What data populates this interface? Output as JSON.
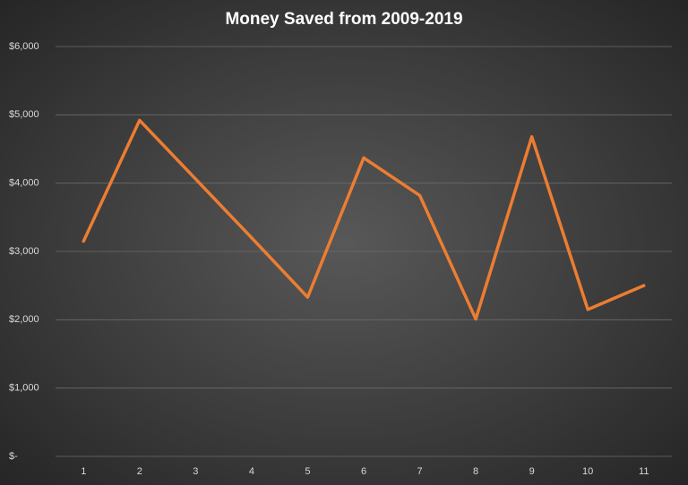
{
  "chart_data": {
    "type": "line",
    "title": "Money Saved from 2009-2019",
    "categories": [
      "1",
      "2",
      "3",
      "4",
      "5",
      "6",
      "7",
      "8",
      "9",
      "10",
      "11"
    ],
    "series": [
      {
        "name": "Money Saved",
        "color": "#ed7d31",
        "values": [
          3150,
          4920,
          4060,
          3200,
          2330,
          4370,
          3820,
          2010,
          4680,
          2150,
          2500
        ]
      }
    ],
    "ylim": [
      0,
      6000
    ],
    "yticks": [
      {
        "value": 0,
        "label": "$-"
      },
      {
        "value": 1000,
        "label": "$1,000"
      },
      {
        "value": 2000,
        "label": "$2,000"
      },
      {
        "value": 3000,
        "label": "$3,000"
      },
      {
        "value": 4000,
        "label": "$4,000"
      },
      {
        "value": 5000,
        "label": "$5,000"
      },
      {
        "value": 6000,
        "label": "$6,000"
      }
    ],
    "grid": true
  }
}
